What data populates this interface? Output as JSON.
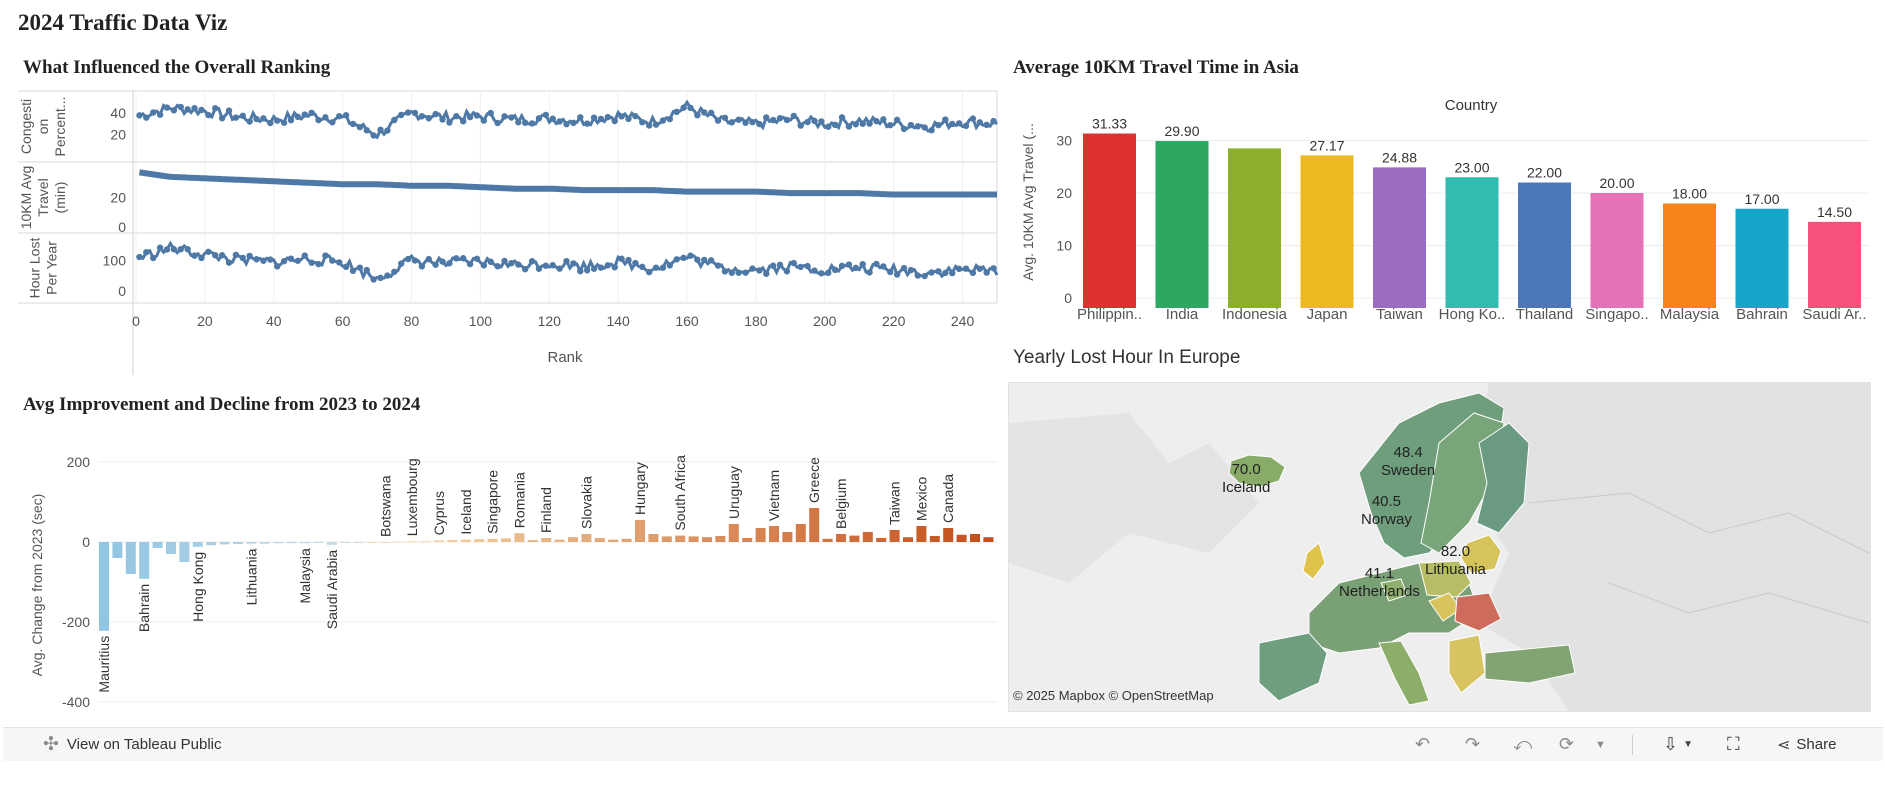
{
  "dashboard": {
    "title": "2024 Traffic Data Viz"
  },
  "ranking_panel": {
    "title": "What Influenced the Overall Ranking",
    "rows": [
      {
        "label_lines": [
          "Congesti",
          "on",
          "Percent..."
        ],
        "ticks": [
          40,
          20
        ]
      },
      {
        "label_lines": [
          "10KM Avg",
          "Travel",
          "(min)"
        ],
        "ticks": [
          20,
          0
        ]
      },
      {
        "label_lines": [
          "Hour Lost",
          "Per Year"
        ],
        "ticks": [
          100,
          0
        ]
      }
    ],
    "x_ticks": [
      0,
      20,
      40,
      60,
      80,
      100,
      120,
      140,
      160,
      180,
      200,
      220,
      240
    ],
    "x_label": "Rank",
    "line_color": "#4e79a7"
  },
  "asia_panel": {
    "title": "Average 10KM Travel Time in Asia",
    "header": "Country",
    "y_label": "Avg. 10KM Avg Travel (...",
    "y_ticks": [
      0,
      10,
      20,
      30
    ]
  },
  "improvement_panel": {
    "title": "Avg Improvement and Decline from 2023 to 2024",
    "y_label": "Avg. Change from 2023 (sec)",
    "y_ticks": [
      200,
      0,
      -200,
      -400
    ]
  },
  "europe_panel": {
    "title": "Yearly Lost Hour In Europe",
    "attribution": "© 2025 Mapbox  © OpenStreetMap",
    "labels": [
      {
        "value": "70.0",
        "name": "Iceland"
      },
      {
        "value": "48.4",
        "name": "Sweden"
      },
      {
        "value": "40.5",
        "name": "Norway"
      },
      {
        "value": "82.0",
        "name": "Lithuania"
      },
      {
        "value": "41.1",
        "name": "Netherlands"
      }
    ]
  },
  "toolbar": {
    "view_label": "View on Tableau Public",
    "share_label": "Share"
  },
  "chart_data": [
    {
      "type": "line",
      "title": "What Influenced the Overall Ranking",
      "xlabel": "Rank",
      "xlim": [
        0,
        250
      ],
      "note_series": "Three small-multiple rows share the Rank axis",
      "series": [
        {
          "name": "Congestion Percent",
          "ylim": [
            0,
            55
          ],
          "x": [
            1,
            10,
            20,
            30,
            40,
            50,
            60,
            70,
            80,
            90,
            100,
            110,
            120,
            130,
            140,
            150,
            160,
            170,
            180,
            190,
            200,
            210,
            220,
            230,
            240,
            250
          ],
          "values": [
            38,
            45,
            42,
            36,
            34,
            38,
            35,
            20,
            40,
            36,
            37,
            34,
            35,
            33,
            38,
            32,
            46,
            32,
            30,
            34,
            30,
            33,
            30,
            28,
            32,
            30
          ]
        },
        {
          "name": "10KM Avg Travel (min)",
          "ylim": [
            0,
            40
          ],
          "x": [
            1,
            10,
            20,
            30,
            40,
            50,
            60,
            70,
            80,
            90,
            100,
            110,
            120,
            130,
            140,
            150,
            160,
            170,
            180,
            190,
            200,
            210,
            220,
            230,
            240,
            250
          ],
          "values": [
            37,
            34,
            33,
            32,
            31,
            30,
            29,
            29,
            28,
            28,
            27,
            26,
            26,
            25,
            25,
            25,
            24,
            24,
            24,
            23,
            23,
            23,
            22,
            22,
            22,
            22
          ]
        },
        {
          "name": "Hour Lost Per Year",
          "ylim": [
            -20,
            170
          ],
          "x": [
            1,
            10,
            20,
            30,
            40,
            50,
            60,
            70,
            80,
            90,
            100,
            110,
            120,
            130,
            140,
            150,
            160,
            170,
            180,
            190,
            200,
            210,
            220,
            230,
            240,
            250
          ],
          "values": [
            110,
            140,
            120,
            100,
            95,
            105,
            95,
            40,
            100,
            90,
            95,
            85,
            90,
            80,
            95,
            75,
            110,
            75,
            70,
            80,
            70,
            75,
            70,
            60,
            70,
            65
          ]
        }
      ]
    },
    {
      "type": "bar",
      "title": "Average 10KM Travel Time in Asia",
      "xlabel": "Country",
      "ylabel": "Avg. 10KM Avg Travel (...",
      "ylim": [
        0,
        32
      ],
      "categories": [
        "Philippin..",
        "India",
        "Indonesia",
        "Japan",
        "Taiwan",
        "Hong Ko..",
        "Thailand",
        "Singapo..",
        "Malaysia",
        "Bahrain",
        "Saudi Ar.."
      ],
      "values": [
        31.33,
        29.9,
        28.5,
        27.17,
        24.88,
        23.0,
        22.0,
        20.0,
        18.0,
        17.0,
        14.5
      ],
      "data_labels": [
        "31.33",
        "29.90",
        "",
        "27.17",
        "24.88",
        "23.00",
        "22.00",
        "20.00",
        "18.00",
        "17.00",
        "14.50"
      ],
      "colors": [
        "#e03131",
        "#2ca862",
        "#8cb02d",
        "#ecb920",
        "#9c6bc2",
        "#30bdb0",
        "#4c77b8",
        "#e571b7",
        "#f58519",
        "#17a5c9",
        "#f4517b"
      ]
    },
    {
      "type": "bar",
      "title": "Avg Improvement and Decline from 2023 to 2024",
      "ylabel": "Avg. Change from 2023 (sec)",
      "ylim": [
        -400,
        250
      ],
      "categories": [
        "Mauritius",
        "",
        "",
        "Bahrain",
        "",
        "",
        "",
        "Hong Kong",
        "",
        "",
        "",
        "Lithuania",
        "",
        "",
        "",
        "Malaysia",
        "",
        "Saudi Arabia",
        "",
        "",
        "",
        "Botswana",
        "",
        "Luxembourg",
        "",
        "Cyprus",
        "",
        "Iceland",
        "",
        "Singapore",
        "",
        "Romania",
        "",
        "Finland",
        "",
        "",
        "Slovakia",
        "",
        "",
        "",
        "Hungary",
        "",
        "",
        "South Africa",
        "",
        "",
        "",
        "Uruguay",
        "",
        "",
        "Vietnam",
        "",
        "",
        "Greece",
        "",
        "Belgium",
        "",
        "",
        "",
        "Taiwan",
        "",
        "Mexico",
        "",
        "Canada",
        "",
        "",
        ""
      ],
      "values": [
        -222,
        -40,
        -80,
        -92,
        -15,
        -30,
        -50,
        -12,
        -8,
        -6,
        -5,
        -4,
        -4,
        -3,
        -3,
        -3,
        -2,
        -7,
        -1,
        -1,
        0,
        0,
        1,
        2,
        2,
        4,
        5,
        6,
        7,
        8,
        9,
        22,
        5,
        10,
        6,
        12,
        20,
        10,
        6,
        8,
        55,
        20,
        14,
        16,
        14,
        12,
        15,
        45,
        10,
        35,
        40,
        25,
        45,
        85,
        8,
        20,
        16,
        25,
        10,
        30,
        12,
        40,
        15,
        35,
        18,
        20,
        12
      ],
      "color_scale": "diverging blue-to-orange"
    },
    {
      "type": "map",
      "title": "Yearly Lost Hour In Europe",
      "regions": [
        "Iceland",
        "Sweden",
        "Norway",
        "Lithuania",
        "Netherlands"
      ],
      "values": [
        70.0,
        48.4,
        40.5,
        82.0,
        41.1
      ]
    }
  ]
}
